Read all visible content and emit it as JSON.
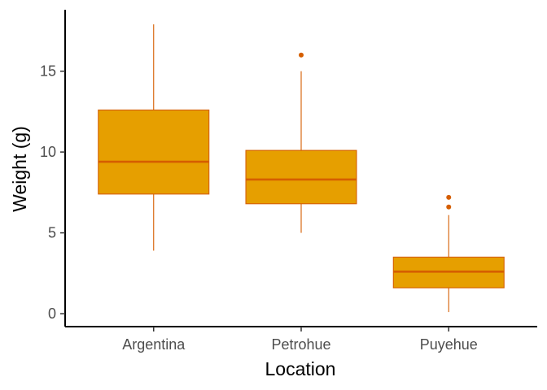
{
  "chart_data": {
    "type": "boxplot",
    "xlabel": "Location",
    "ylabel": "Weight (g)",
    "ylim": [
      -0.8,
      18.8
    ],
    "yticks": [
      0,
      5,
      10,
      15
    ],
    "categories": [
      "Argentina",
      "Petrohue",
      "Puyehue"
    ],
    "boxes": [
      {
        "category": "Argentina",
        "whisker_low": 3.9,
        "q1": 7.4,
        "median": 9.4,
        "q3": 12.6,
        "whisker_high": 17.9,
        "outliers": []
      },
      {
        "category": "Petrohue",
        "whisker_low": 5.0,
        "q1": 6.8,
        "median": 8.3,
        "q3": 10.1,
        "whisker_high": 15.0,
        "outliers": [
          16.0
        ]
      },
      {
        "category": "Puyehue",
        "whisker_low": 0.1,
        "q1": 1.6,
        "median": 2.6,
        "q3": 3.5,
        "whisker_high": 6.1,
        "outliers": [
          6.6,
          7.2
        ]
      }
    ],
    "grid": false,
    "legend": "none",
    "colors": {
      "box_fill": "#E69F00",
      "box_stroke": "#D55E00"
    }
  }
}
